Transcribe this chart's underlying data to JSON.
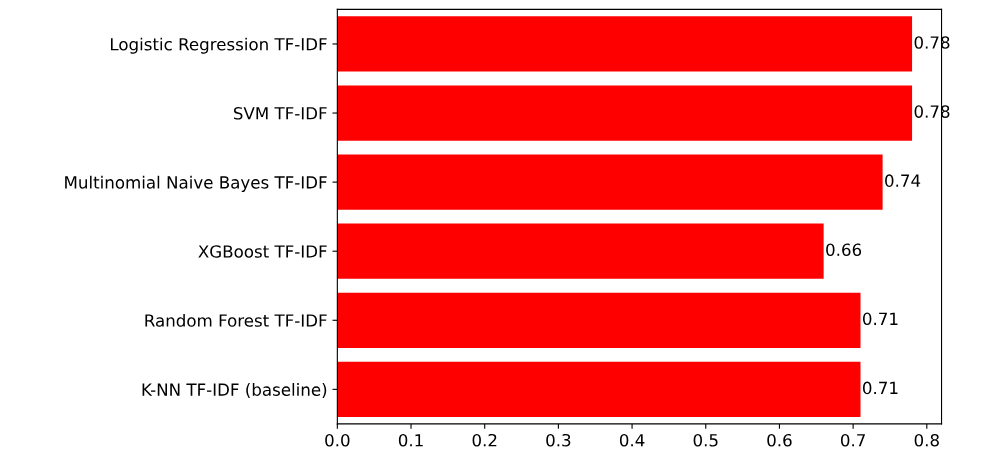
{
  "chart_data": {
    "type": "bar",
    "orientation": "horizontal",
    "categories": [
      "Logistic Regression TF-IDF",
      "SVM TF-IDF",
      "Multinomial Naive Bayes TF-IDF",
      "XGBoost TF-IDF",
      "Random Forest TF-IDF",
      "K-NN TF-IDF (baseline)"
    ],
    "values": [
      0.78,
      0.78,
      0.74,
      0.66,
      0.71,
      0.71
    ],
    "color": "#ff0000",
    "xlim": [
      0,
      0.82
    ],
    "xticks": [
      {
        "value": 0,
        "label": "0.0"
      },
      0.1,
      0.2,
      0.3,
      0.4,
      0.5,
      0.6,
      0.7,
      0.8
    ],
    "data_labels": true,
    "grid": false,
    "legend": false
  }
}
